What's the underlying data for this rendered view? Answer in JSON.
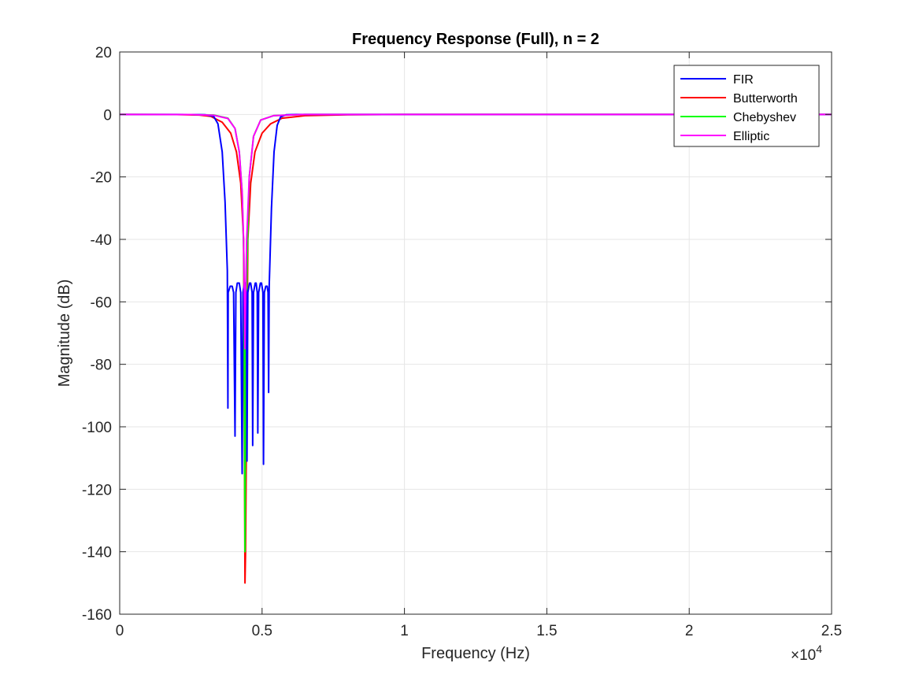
{
  "chart_data": {
    "type": "line",
    "title": "Frequency Response (Full), n = 2",
    "xlabel": "Frequency (Hz)",
    "ylabel": "Magnitude (dB)",
    "x_multiplier_label": "×10",
    "x_multiplier_exponent": "4",
    "xlim": [
      0,
      25000
    ],
    "ylim": [
      -160,
      20
    ],
    "x_ticks": [
      0,
      5000,
      10000,
      15000,
      20000,
      25000
    ],
    "x_tick_labels": [
      "0",
      "0.5",
      "1",
      "1.5",
      "2",
      "2.5"
    ],
    "y_ticks": [
      -160,
      -140,
      -120,
      -100,
      -80,
      -60,
      -40,
      -20,
      0,
      20
    ],
    "y_tick_labels": [
      "-160",
      "-140",
      "-120",
      "-100",
      "-80",
      "-60",
      "-40",
      "-20",
      "0",
      "20"
    ],
    "grid": true,
    "legend_position": "top-right",
    "series": [
      {
        "name": "FIR",
        "color": "#0000ff",
        "points": [
          [
            0,
            0
          ],
          [
            2000,
            0
          ],
          [
            3000,
            -0.1
          ],
          [
            3300,
            -0.6
          ],
          [
            3450,
            -3
          ],
          [
            3600,
            -12
          ],
          [
            3700,
            -28
          ],
          [
            3780,
            -50
          ],
          [
            3800,
            -94
          ],
          [
            3810,
            -57
          ],
          [
            3880,
            -55
          ],
          [
            3950,
            -55
          ],
          [
            4000,
            -57
          ],
          [
            4050,
            -103
          ],
          [
            4080,
            -57
          ],
          [
            4130,
            -54
          ],
          [
            4200,
            -54
          ],
          [
            4250,
            -57
          ],
          [
            4300,
            -115
          ],
          [
            4330,
            -57
          ],
          [
            4380,
            -54
          ],
          [
            4400,
            -54
          ],
          [
            4450,
            -57
          ],
          [
            4470,
            -111
          ],
          [
            4500,
            -57
          ],
          [
            4560,
            -54
          ],
          [
            4600,
            -54
          ],
          [
            4650,
            -57
          ],
          [
            4670,
            -106
          ],
          [
            4700,
            -57
          ],
          [
            4760,
            -54
          ],
          [
            4790,
            -54
          ],
          [
            4830,
            -57
          ],
          [
            4850,
            -102
          ],
          [
            4880,
            -57
          ],
          [
            4940,
            -54
          ],
          [
            4980,
            -54
          ],
          [
            5030,
            -57
          ],
          [
            5050,
            -112
          ],
          [
            5080,
            -57
          ],
          [
            5130,
            -55
          ],
          [
            5180,
            -55
          ],
          [
            5210,
            -57
          ],
          [
            5230,
            -89
          ],
          [
            5250,
            -55
          ],
          [
            5330,
            -30
          ],
          [
            5420,
            -12
          ],
          [
            5530,
            -3.5
          ],
          [
            5650,
            -0.8
          ],
          [
            5850,
            -0.1
          ],
          [
            6200,
            0
          ],
          [
            25000,
            0
          ]
        ]
      },
      {
        "name": "Butterworth",
        "color": "#ff0000",
        "points": [
          [
            0,
            0
          ],
          [
            2000,
            -0.05
          ],
          [
            2800,
            -0.2
          ],
          [
            3200,
            -0.6
          ],
          [
            3600,
            -2.5
          ],
          [
            3900,
            -6
          ],
          [
            4100,
            -12
          ],
          [
            4250,
            -22
          ],
          [
            4350,
            -40
          ],
          [
            4400,
            -150
          ],
          [
            4420,
            -140
          ],
          [
            4500,
            -40
          ],
          [
            4600,
            -22
          ],
          [
            4750,
            -12
          ],
          [
            5000,
            -6
          ],
          [
            5300,
            -3
          ],
          [
            5700,
            -1.2
          ],
          [
            6500,
            -0.4
          ],
          [
            8000,
            -0.1
          ],
          [
            10000,
            0
          ],
          [
            25000,
            0
          ]
        ]
      },
      {
        "name": "Chebyshev",
        "color": "#00ff00",
        "points": [
          [
            0,
            0
          ],
          [
            2500,
            -0.05
          ],
          [
            3300,
            -0.2
          ],
          [
            3800,
            -1.2
          ],
          [
            4050,
            -4.5
          ],
          [
            4200,
            -12
          ],
          [
            4300,
            -25
          ],
          [
            4360,
            -45
          ],
          [
            4400,
            -140
          ],
          [
            4420,
            -80
          ],
          [
            4480,
            -45
          ],
          [
            4550,
            -20
          ],
          [
            4700,
            -7
          ],
          [
            4950,
            -1.8
          ],
          [
            5400,
            -0.4
          ],
          [
            6500,
            0
          ],
          [
            25000,
            0
          ]
        ]
      },
      {
        "name": "Elliptic",
        "color": "#ff00ff",
        "points": [
          [
            0,
            0
          ],
          [
            2500,
            -0.05
          ],
          [
            3300,
            -0.25
          ],
          [
            3800,
            -1.3
          ],
          [
            4050,
            -4.5
          ],
          [
            4200,
            -12
          ],
          [
            4300,
            -25
          ],
          [
            4350,
            -40
          ],
          [
            4380,
            -60
          ],
          [
            4400,
            -75
          ],
          [
            4420,
            -60
          ],
          [
            4460,
            -40
          ],
          [
            4550,
            -20
          ],
          [
            4700,
            -7
          ],
          [
            4950,
            -1.8
          ],
          [
            5400,
            -0.4
          ],
          [
            6500,
            0
          ],
          [
            25000,
            0
          ]
        ]
      }
    ]
  }
}
